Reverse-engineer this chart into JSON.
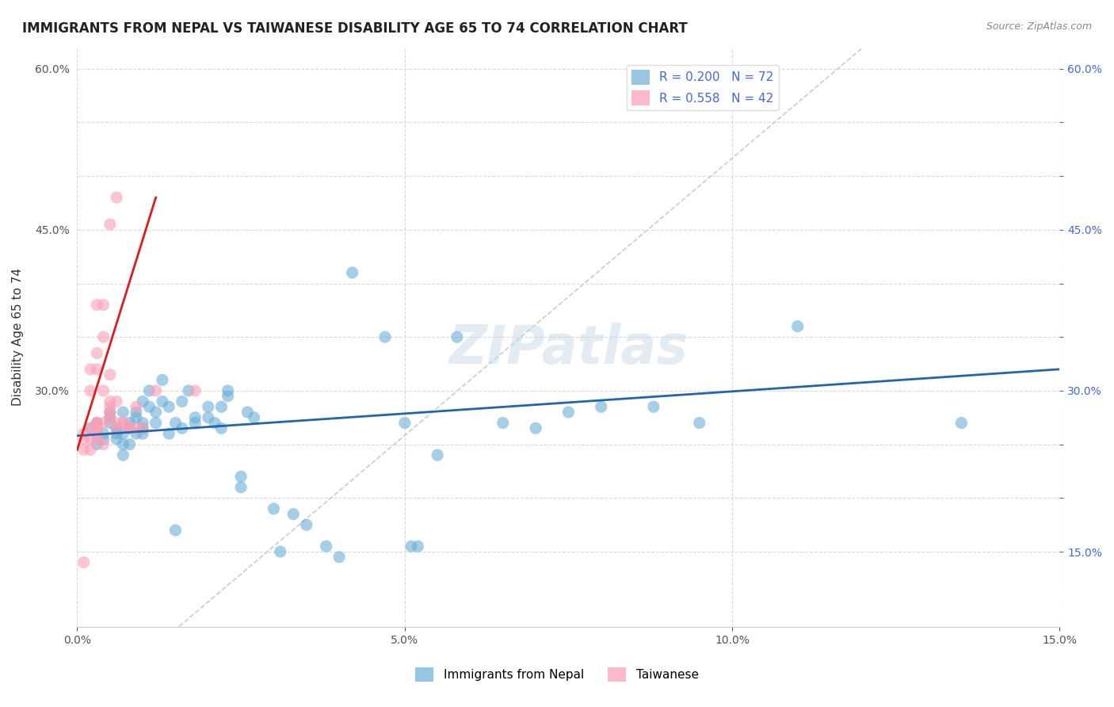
{
  "title": "IMMIGRANTS FROM NEPAL VS TAIWANESE DISABILITY AGE 65 TO 74 CORRELATION CHART",
  "source": "Source: ZipAtlas.com",
  "xlabel": "",
  "ylabel": "Disability Age 65 to 74",
  "xlim": [
    0,
    0.15
  ],
  "ylim": [
    0.08,
    0.62
  ],
  "x_ticks": [
    0.0,
    0.05,
    0.1,
    0.15
  ],
  "x_tick_labels": [
    "0.0%",
    "5.0%",
    "10.0%",
    "15.0%"
  ],
  "y_ticks": [
    0.15,
    0.2,
    0.25,
    0.3,
    0.35,
    0.4,
    0.45,
    0.5,
    0.55,
    0.6
  ],
  "y_tick_labels_left": [
    "",
    "",
    "",
    "30.0%",
    "",
    "",
    "45.0%",
    "",
    "",
    "60.0%"
  ],
  "y_tick_labels_right": [
    "15.0%",
    "",
    "",
    "30.0%",
    "",
    "",
    "45.0%",
    "",
    "",
    "60.0%"
  ],
  "blue_color": "#6baed6",
  "pink_color": "#fa9fb5",
  "blue_line_color": "#2166ac",
  "pink_line_color": "#e31a1c",
  "ref_line_color": "#cccccc",
  "legend_R_blue": "R = 0.200",
  "legend_N_blue": "N = 72",
  "legend_R_pink": "R = 0.558",
  "legend_N_pink": "N = 42",
  "legend_label_blue": "Immigrants from Nepal",
  "legend_label_pink": "Taiwanese",
  "blue_scatter_x": [
    0.002,
    0.003,
    0.003,
    0.004,
    0.004,
    0.005,
    0.005,
    0.005,
    0.006,
    0.006,
    0.006,
    0.007,
    0.007,
    0.007,
    0.007,
    0.008,
    0.008,
    0.008,
    0.009,
    0.009,
    0.009,
    0.01,
    0.01,
    0.01,
    0.01,
    0.011,
    0.011,
    0.012,
    0.012,
    0.013,
    0.013,
    0.014,
    0.014,
    0.015,
    0.015,
    0.016,
    0.016,
    0.017,
    0.018,
    0.018,
    0.02,
    0.02,
    0.021,
    0.022,
    0.022,
    0.023,
    0.023,
    0.025,
    0.025,
    0.026,
    0.027,
    0.03,
    0.031,
    0.033,
    0.035,
    0.038,
    0.04,
    0.042,
    0.047,
    0.05,
    0.051,
    0.052,
    0.055,
    0.058,
    0.065,
    0.07,
    0.075,
    0.08,
    0.088,
    0.095,
    0.11,
    0.135
  ],
  "blue_scatter_y": [
    0.265,
    0.27,
    0.25,
    0.26,
    0.255,
    0.27,
    0.28,
    0.275,
    0.26,
    0.265,
    0.255,
    0.25,
    0.28,
    0.26,
    0.24,
    0.27,
    0.265,
    0.25,
    0.26,
    0.275,
    0.28,
    0.29,
    0.27,
    0.265,
    0.26,
    0.285,
    0.3,
    0.27,
    0.28,
    0.31,
    0.29,
    0.285,
    0.26,
    0.17,
    0.27,
    0.265,
    0.29,
    0.3,
    0.275,
    0.27,
    0.275,
    0.285,
    0.27,
    0.265,
    0.285,
    0.295,
    0.3,
    0.22,
    0.21,
    0.28,
    0.275,
    0.19,
    0.15,
    0.185,
    0.175,
    0.155,
    0.145,
    0.41,
    0.35,
    0.27,
    0.155,
    0.155,
    0.24,
    0.35,
    0.27,
    0.265,
    0.28,
    0.285,
    0.285,
    0.27,
    0.36,
    0.27
  ],
  "pink_scatter_x": [
    0.001,
    0.001,
    0.001,
    0.001,
    0.002,
    0.002,
    0.002,
    0.002,
    0.002,
    0.003,
    0.003,
    0.003,
    0.003,
    0.003,
    0.003,
    0.003,
    0.003,
    0.003,
    0.004,
    0.004,
    0.004,
    0.004,
    0.004,
    0.005,
    0.005,
    0.005,
    0.005,
    0.005,
    0.005,
    0.006,
    0.006,
    0.006,
    0.006,
    0.007,
    0.007,
    0.008,
    0.008,
    0.009,
    0.009,
    0.01,
    0.012,
    0.018
  ],
  "pink_scatter_y": [
    0.245,
    0.255,
    0.26,
    0.14,
    0.245,
    0.265,
    0.255,
    0.3,
    0.32,
    0.26,
    0.27,
    0.26,
    0.265,
    0.255,
    0.27,
    0.32,
    0.335,
    0.38,
    0.35,
    0.38,
    0.27,
    0.25,
    0.3,
    0.455,
    0.29,
    0.28,
    0.275,
    0.285,
    0.315,
    0.27,
    0.265,
    0.29,
    0.48,
    0.27,
    0.27,
    0.265,
    0.265,
    0.285,
    0.265,
    0.265,
    0.3,
    0.3
  ],
  "blue_trend_x": [
    0.0,
    0.15
  ],
  "blue_trend_y": [
    0.258,
    0.32
  ],
  "pink_trend_x": [
    0.0,
    0.012
  ],
  "pink_trend_y": [
    0.245,
    0.48
  ],
  "ref_line_x": [
    0.0,
    0.12
  ],
  "ref_line_y": [
    0.0,
    0.62
  ],
  "background_color": "#ffffff",
  "grid_color": "#d9d9d9",
  "title_fontsize": 12,
  "axis_label_fontsize": 11,
  "tick_fontsize": 10,
  "legend_fontsize": 11,
  "source_fontsize": 9,
  "marker_size": 120,
  "marker_alpha": 0.6
}
